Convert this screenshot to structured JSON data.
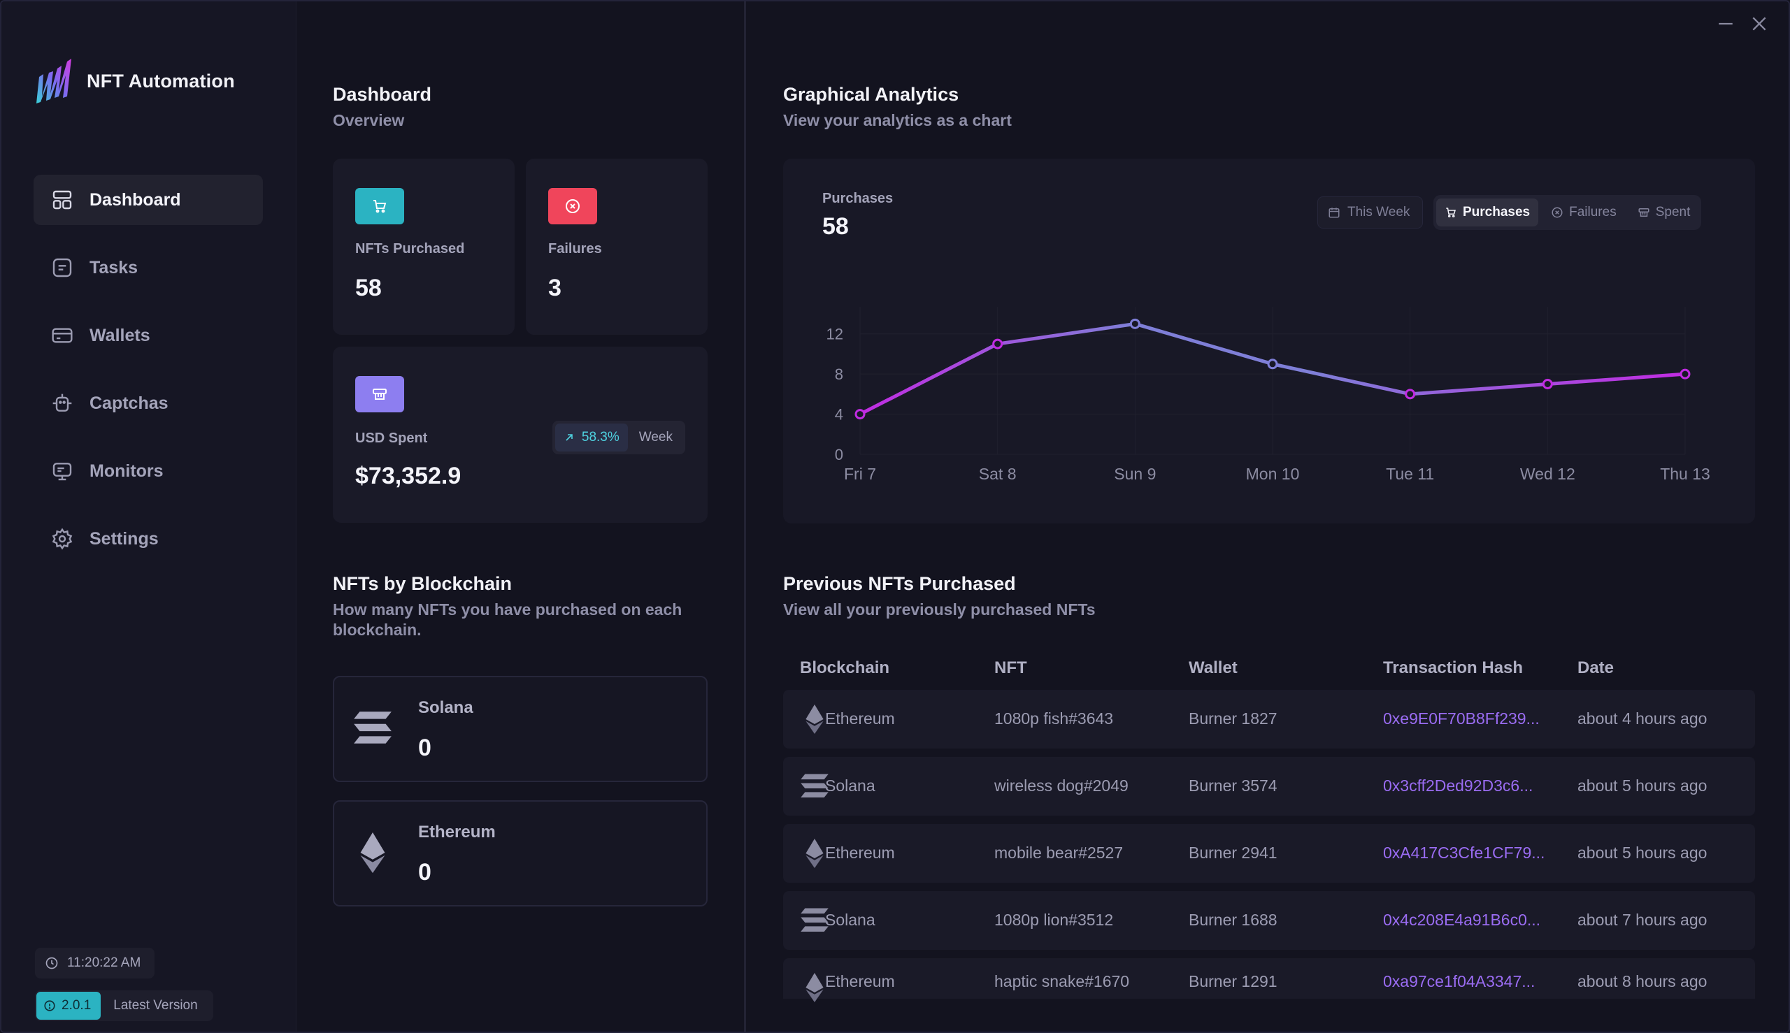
{
  "app": {
    "name": "NFT Automation"
  },
  "sidebar": {
    "items": [
      {
        "label": "Dashboard",
        "icon": "dashboard-icon",
        "active": true
      },
      {
        "label": "Tasks",
        "icon": "tasks-icon",
        "active": false
      },
      {
        "label": "Wallets",
        "icon": "wallet-icon",
        "active": false
      },
      {
        "label": "Captchas",
        "icon": "robot-icon",
        "active": false
      },
      {
        "label": "Monitors",
        "icon": "monitor-icon",
        "active": false
      },
      {
        "label": "Settings",
        "icon": "gear-icon",
        "active": false
      }
    ],
    "clock": "11:20:22 AM",
    "version": "2.0.1",
    "version_label": "Latest Version"
  },
  "dashboard": {
    "title": "Dashboard",
    "subtitle": "Overview",
    "stats": {
      "purchased": {
        "label": "NFTs Purchased",
        "value": "58"
      },
      "failures": {
        "label": "Failures",
        "value": "3"
      },
      "spent": {
        "label": "USD Spent",
        "value": "$73,352.9",
        "change": "58.3%",
        "period": "Week"
      }
    }
  },
  "blockchains": {
    "title": "NFTs by Blockchain",
    "subtitle": "How many NFTs you have purchased on each blockchain.",
    "items": [
      {
        "name": "Solana",
        "count": "0",
        "icon": "solana-icon"
      },
      {
        "name": "Ethereum",
        "count": "0",
        "icon": "ethereum-icon"
      }
    ]
  },
  "analytics": {
    "title": "Graphical Analytics",
    "subtitle": "View your analytics as a chart",
    "kpi_label": "Purchases",
    "kpi_value": "58",
    "range": "This Week",
    "tabs": [
      {
        "label": "Purchases",
        "icon": "cart-icon",
        "active": true
      },
      {
        "label": "Failures",
        "icon": "x-circle-icon",
        "active": false
      },
      {
        "label": "Spent",
        "icon": "money-icon",
        "active": false
      }
    ]
  },
  "chart_data": {
    "type": "line",
    "categories": [
      "Fri 7",
      "Sat 8",
      "Sun 9",
      "Mon 10",
      "Tue 11",
      "Wed 12",
      "Thu 13"
    ],
    "series": [
      {
        "values": [
          4,
          11,
          13,
          9,
          6,
          7,
          8
        ]
      }
    ],
    "ylim": [
      0,
      14
    ],
    "yticks": [
      0,
      4,
      8,
      12
    ],
    "grid": true,
    "colors": {
      "line_start": "#c12be2",
      "line_mid": "#7f7fd8",
      "line_end": "#c12be2"
    }
  },
  "purchases": {
    "title": "Previous NFTs Purchased",
    "subtitle": "View all your previously purchased NFTs",
    "columns": [
      "Blockchain",
      "NFT",
      "Wallet",
      "Transaction Hash",
      "Date"
    ],
    "rows": [
      {
        "chain": "Ethereum",
        "nft": "1080p fish#3643",
        "wallet": "Burner 1827",
        "hash": "0xe9E0F70B8Ff239...",
        "date": "about 4 hours ago"
      },
      {
        "chain": "Solana",
        "nft": "wireless dog#2049",
        "wallet": "Burner 3574",
        "hash": "0x3cff2Ded92D3c6...",
        "date": "about 5 hours ago"
      },
      {
        "chain": "Ethereum",
        "nft": "mobile bear#2527",
        "wallet": "Burner 2941",
        "hash": "0xA417C3Cfe1CF79...",
        "date": "about 5 hours ago"
      },
      {
        "chain": "Solana",
        "nft": "1080p lion#3512",
        "wallet": "Burner 1688",
        "hash": "0x4c208E4a91B6c0...",
        "date": "about 7 hours ago"
      },
      {
        "chain": "Ethereum",
        "nft": "haptic snake#1670",
        "wallet": "Burner 1291",
        "hash": "0xa97ce1f04A3347...",
        "date": "about 8 hours ago"
      }
    ]
  },
  "colors": {
    "accent_teal": "#2bb3c2",
    "accent_red": "#f0455b",
    "accent_purple": "#8d7ef0",
    "hash_link": "#9a6cf2"
  }
}
